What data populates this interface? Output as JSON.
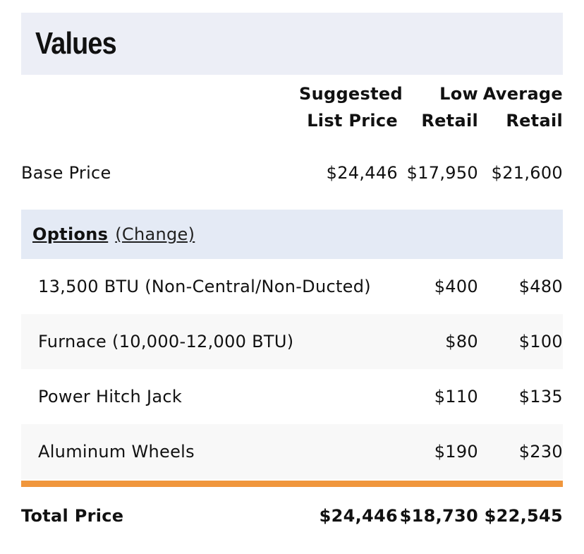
{
  "section_title": "Values",
  "columns": {
    "suggested_line1": "Suggested",
    "suggested_line2": "List Price",
    "low_line1": "Low",
    "low_line2": "Retail",
    "avg_line1": "Average",
    "avg_line2": "Retail"
  },
  "base": {
    "label": "Base Price",
    "suggested": "$24,446",
    "low": "$17,950",
    "average": "$21,600"
  },
  "options_header": {
    "title": "Options",
    "change_link": "(Change)"
  },
  "options": [
    {
      "label": "13,500 BTU (Non-Central/Non-Ducted)",
      "low": "$400",
      "average": "$480"
    },
    {
      "label": "Furnace (10,000-12,000 BTU)",
      "low": "$80",
      "average": "$100"
    },
    {
      "label": "Power Hitch Jack",
      "low": "$110",
      "average": "$135"
    },
    {
      "label": "Aluminum Wheels",
      "low": "$190",
      "average": "$230"
    }
  ],
  "total": {
    "label": "Total Price",
    "suggested": "$24,446",
    "low": "$18,730",
    "average": "$22,545"
  },
  "colors": {
    "header_bg": "#eceef6",
    "options_bg": "#e4eaf5",
    "alt_row_bg": "#f8f8f8",
    "divider": "#f0963c"
  }
}
